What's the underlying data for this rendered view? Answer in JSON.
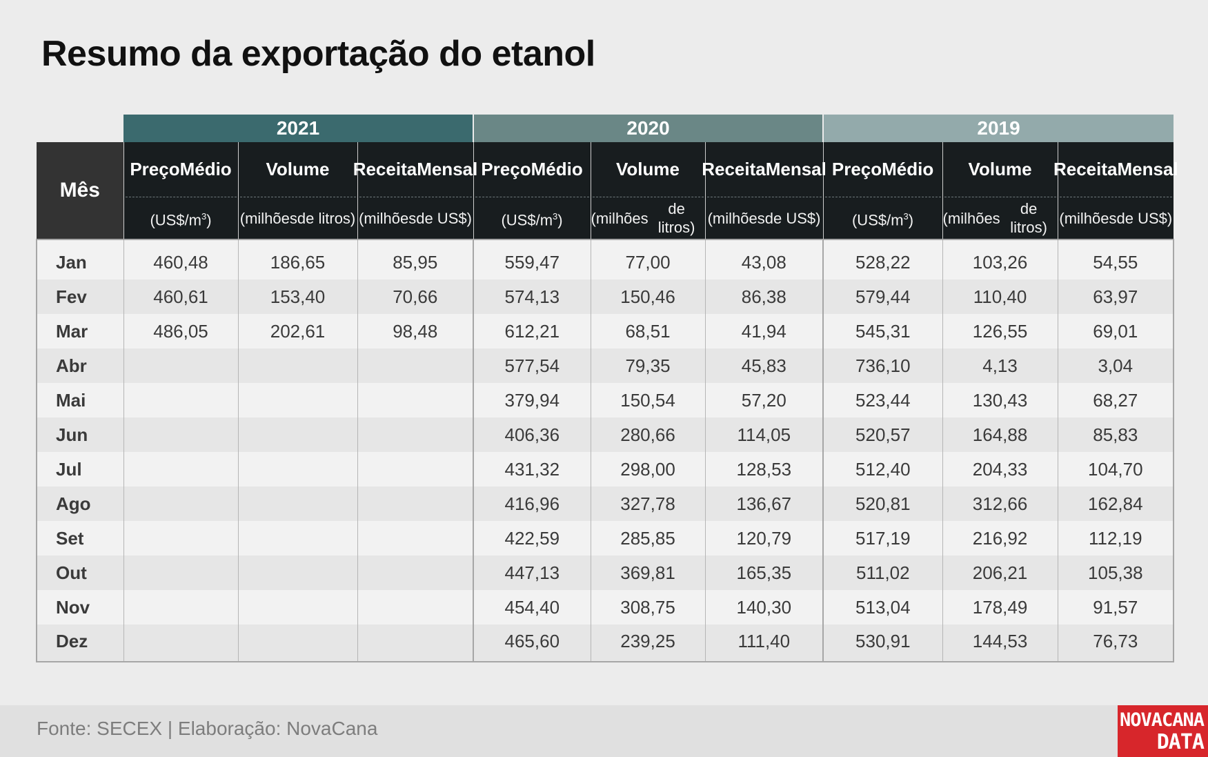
{
  "title": "Resumo da exportação do etanol",
  "chart_data": {
    "type": "table",
    "title": "Resumo da exportação do etanol",
    "month_header": "Mês",
    "years": [
      "2021",
      "2020",
      "2019"
    ],
    "columns": [
      {
        "name": "Preço Médio",
        "unit": "(US$/m³)"
      },
      {
        "name": "Volume",
        "unit": "(milhões de litros)"
      },
      {
        "name": "Receita Mensal",
        "unit": "(milhões de US$)"
      }
    ],
    "months": [
      "Jan",
      "Fev",
      "Mar",
      "Abr",
      "Mai",
      "Jun",
      "Jul",
      "Ago",
      "Set",
      "Out",
      "Nov",
      "Dez"
    ],
    "rows": [
      [
        "460,48",
        "186,65",
        "85,95",
        "559,47",
        "77,00",
        "43,08",
        "528,22",
        "103,26",
        "54,55"
      ],
      [
        "460,61",
        "153,40",
        "70,66",
        "574,13",
        "150,46",
        "86,38",
        "579,44",
        "110,40",
        "63,97"
      ],
      [
        "486,05",
        "202,61",
        "98,48",
        "612,21",
        "68,51",
        "41,94",
        "545,31",
        "126,55",
        "69,01"
      ],
      [
        "",
        "",
        "",
        "577,54",
        "79,35",
        "45,83",
        "736,10",
        "4,13",
        "3,04"
      ],
      [
        "",
        "",
        "",
        "379,94",
        "150,54",
        "57,20",
        "523,44",
        "130,43",
        "68,27"
      ],
      [
        "",
        "",
        "",
        "406,36",
        "280,66",
        "114,05",
        "520,57",
        "164,88",
        "85,83"
      ],
      [
        "",
        "",
        "",
        "431,32",
        "298,00",
        "128,53",
        "512,40",
        "204,33",
        "104,70"
      ],
      [
        "",
        "",
        "",
        "416,96",
        "327,78",
        "136,67",
        "520,81",
        "312,66",
        "162,84"
      ],
      [
        "",
        "",
        "",
        "422,59",
        "285,85",
        "120,79",
        "517,19",
        "216,92",
        "112,19"
      ],
      [
        "",
        "",
        "",
        "447,13",
        "369,81",
        "165,35",
        "511,02",
        "206,21",
        "105,38"
      ],
      [
        "",
        "",
        "",
        "454,40",
        "308,75",
        "140,30",
        "513,04",
        "178,49",
        "91,57"
      ],
      [
        "",
        "",
        "",
        "465,60",
        "239,25",
        "111,40",
        "530,91",
        "144,53",
        "76,73"
      ]
    ]
  },
  "header": {
    "preco_line1": "Preço",
    "preco_line2": "Médio",
    "preco_unit": "(US$/m",
    "preco_unit_sup": "3",
    "preco_unit_end": ")",
    "volume": "Volume",
    "volume_unit1": "(milhões",
    "volume_unit2": "de litros)",
    "receita_line1": "Receita",
    "receita_line2": "Mensal",
    "receita_unit1": "(milhões",
    "receita_unit2": "de US$)"
  },
  "footer": {
    "source": "Fonte: SECEX | Elaboração: NovaCana",
    "logo_line1": "NOVACANA",
    "logo_line2": "DATA"
  },
  "colors": {
    "y2021": "#3b6a6e",
    "y2020": "#6a8786",
    "y2019": "#93aaab",
    "header_dark": "#181d1f",
    "logo_red": "#d7262b"
  }
}
